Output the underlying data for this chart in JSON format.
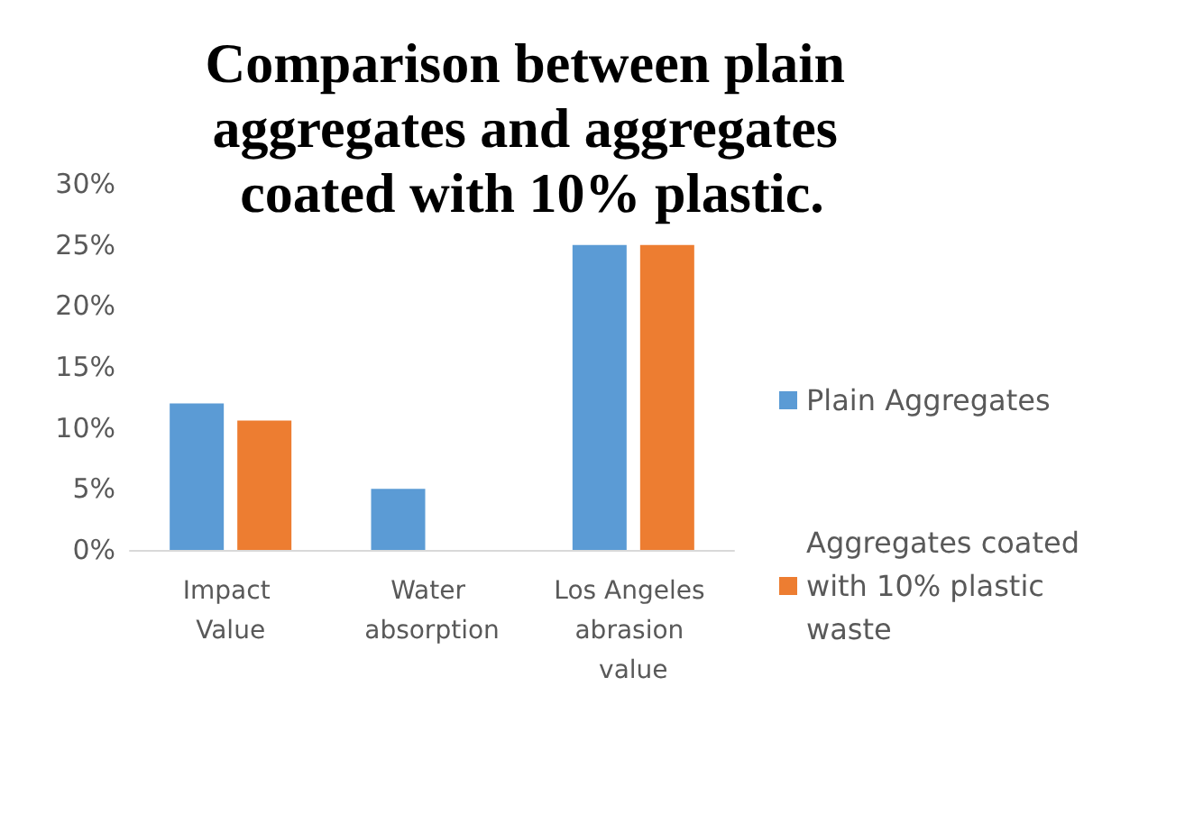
{
  "chart_data": {
    "type": "bar",
    "title": "Comparison between plain aggregates and aggregates coated with 10% plastic.",
    "categories": [
      "Impact Value",
      "Water absorption",
      "Los Angeles abrasion value"
    ],
    "series": [
      {
        "name": "Plain Aggregates",
        "color": "#5b9bd5",
        "values": [
          12,
          5,
          25
        ]
      },
      {
        "name": "Aggregates coated with 10% plastic waste",
        "color": "#ed7d31",
        "values": [
          10.6,
          0,
          25
        ]
      }
    ],
    "ylim": [
      0,
      30
    ],
    "yticks": [
      {
        "value": 0,
        "label": "0%"
      },
      {
        "value": 5,
        "label": "5%"
      },
      {
        "value": 10,
        "label": "10%"
      },
      {
        "value": 15,
        "label": "15%"
      },
      {
        "value": 20,
        "label": "20%"
      },
      {
        "value": 25,
        "label": "25%"
      },
      {
        "value": 30,
        "label": "30%"
      }
    ],
    "grid": false,
    "legend": "right"
  }
}
